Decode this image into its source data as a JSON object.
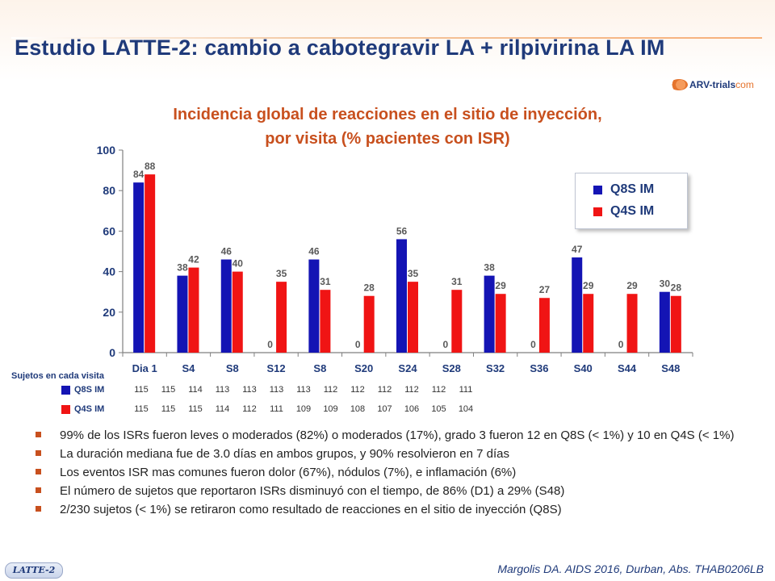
{
  "slide": {
    "title": "Estudio LATTE-2: cambio a cabotegravir LA + rilpivirina LA IM",
    "logo_brand": "ARV-trials",
    "logo_suffix": "com",
    "study_tag": "LATTE-2",
    "citation": "Margolis DA. AIDS 2016, Durban, Abs. THAB0206LB"
  },
  "chart_data": {
    "type": "bar",
    "title": "Incidencia global de reacciones en el sitio de inyección, por visita (% pacientes con ISR)",
    "title_lines": [
      "Incidencia global de reacciones en el sitio de inyección,",
      "por visita (% pacientes con ISR)"
    ],
    "categories": [
      "Dia 1",
      "S4",
      "S8",
      "S12",
      "S8",
      "S20",
      "S24",
      "S28",
      "S32",
      "S36",
      "S40",
      "S44",
      "S48"
    ],
    "series": [
      {
        "name": "Q8S IM",
        "color": "#1414b4",
        "values": [
          84,
          38,
          46,
          0,
          46,
          0,
          56,
          0,
          38,
          0,
          47,
          0,
          30
        ]
      },
      {
        "name": "Q4S IM",
        "color": "#f01414",
        "values": [
          88,
          42,
          40,
          35,
          31,
          28,
          35,
          31,
          29,
          27,
          29,
          29,
          28
        ]
      }
    ],
    "ylim": [
      0,
      100
    ],
    "yticks": [
      0,
      20,
      40,
      60,
      80,
      100
    ],
    "grid": false,
    "legend_position": "top-right"
  },
  "subjects": {
    "heading": "Sujetos en cada  visita",
    "rows": [
      {
        "label": "Q8S IM",
        "color": "#1414b4",
        "values": [
          "115",
          "115",
          "114",
          "113",
          "113",
          "113",
          "113",
          "112",
          "112",
          "112",
          "112",
          "112",
          "111"
        ]
      },
      {
        "label": "Q4S IM",
        "color": "#f01414",
        "values": [
          "115",
          "115",
          "115",
          "114",
          "112",
          "111",
          "109",
          "109",
          "108",
          "107",
          "106",
          "105",
          "104"
        ]
      }
    ]
  },
  "bullets": [
    "99% de los ISRs fueron leves o moderados (82%) o moderados (17%), grado 3 fueron 12 en Q8S (< 1%) y 10 en Q4S (< 1%)",
    "La duración mediana fue de 3.0 días en ambos grupos, y 90% resolvieron en 7 días",
    "Los eventos ISR mas comunes fueron dolor (67%), nódulos (7%), e inflamación (6%)",
    "El número de sujetos que reportaron ISRs disminuyó con el tiempo, de 86% (D1) a 29% (S48)",
    "2/230 sujetos (< 1%) se retiraron como resultado de reacciones en el sitio de inyección (Q8S)"
  ]
}
